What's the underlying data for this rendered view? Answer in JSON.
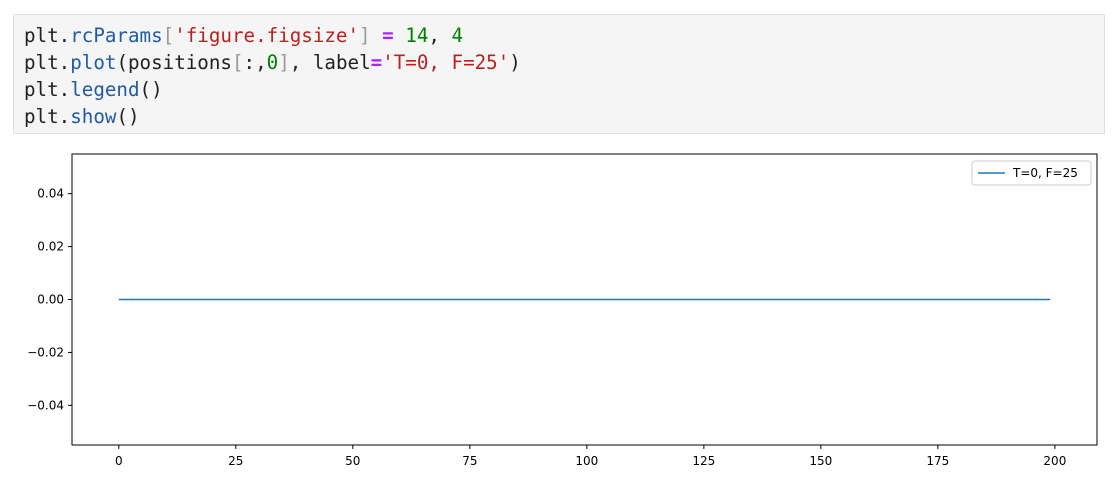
{
  "code_cell": {
    "lines": [
      [
        {
          "t": "plt",
          "c": "name"
        },
        {
          "t": ".",
          "c": "punc"
        },
        {
          "t": "rcParams",
          "c": "attr"
        },
        {
          "t": "[",
          "c": "brk"
        },
        {
          "t": "'figure.figsize'",
          "c": "str"
        },
        {
          "t": "]",
          "c": "brk"
        },
        {
          "t": " ",
          "c": "punc"
        },
        {
          "t": "=",
          "c": "kw"
        },
        {
          "t": " ",
          "c": "punc"
        },
        {
          "t": "14",
          "c": "num"
        },
        {
          "t": ", ",
          "c": "punc"
        },
        {
          "t": "4",
          "c": "num"
        }
      ],
      [
        {
          "t": "plt",
          "c": "name"
        },
        {
          "t": ".",
          "c": "punc"
        },
        {
          "t": "plot",
          "c": "attr"
        },
        {
          "t": "(positions",
          "c": "name"
        },
        {
          "t": "[",
          "c": "brk"
        },
        {
          "t": ":,",
          "c": "punc"
        },
        {
          "t": "0",
          "c": "num"
        },
        {
          "t": "]",
          "c": "brk"
        },
        {
          "t": ", label",
          "c": "name"
        },
        {
          "t": "=",
          "c": "kw"
        },
        {
          "t": "'T=0, F=25'",
          "c": "str"
        },
        {
          "t": ")",
          "c": "punc"
        }
      ],
      [
        {
          "t": "plt",
          "c": "name"
        },
        {
          "t": ".",
          "c": "punc"
        },
        {
          "t": "legend",
          "c": "attr"
        },
        {
          "t": "()",
          "c": "punc"
        }
      ],
      [
        {
          "t": "plt",
          "c": "name"
        },
        {
          "t": ".",
          "c": "punc"
        },
        {
          "t": "show",
          "c": "attr"
        },
        {
          "t": "()",
          "c": "punc"
        }
      ]
    ]
  },
  "chart_data": {
    "type": "line",
    "title": "",
    "xlabel": "",
    "ylabel": "",
    "xlim": [
      -10,
      209
    ],
    "ylim": [
      -0.055,
      0.055
    ],
    "xticks": [
      0,
      25,
      50,
      75,
      100,
      125,
      150,
      175,
      200
    ],
    "xtick_labels": [
      "0",
      "25",
      "50",
      "75",
      "100",
      "125",
      "150",
      "175",
      "200"
    ],
    "yticks": [
      -0.04,
      -0.02,
      0.0,
      0.02,
      0.04
    ],
    "ytick_labels": [
      "−0.04",
      "−0.02",
      "0.00",
      "0.02",
      "0.04"
    ],
    "grid": false,
    "legend_position": "top-right",
    "series": [
      {
        "name": "T=0, F=25",
        "color": "#1f77b4",
        "x_start": 0,
        "x_end": 199,
        "y_constant": 0.0
      }
    ]
  }
}
